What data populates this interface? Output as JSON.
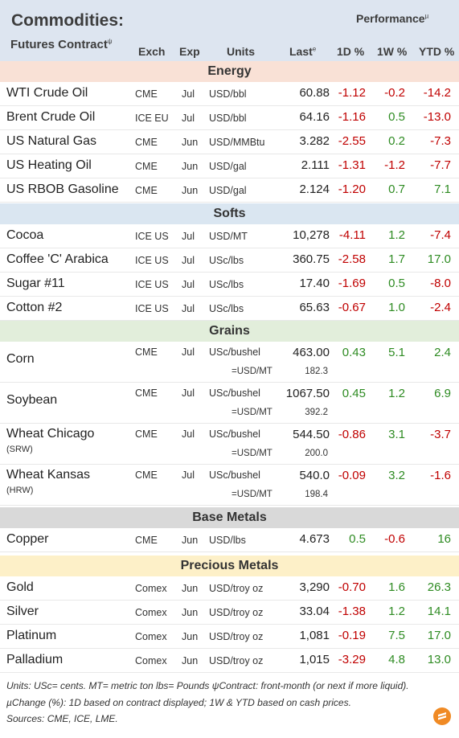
{
  "header": {
    "title": "Commodities:",
    "subtitle": "Futures Contract",
    "subtitle_mark": "ψ",
    "performance": "Performance",
    "performance_mark": "µ",
    "col_exch": "Exch",
    "col_exp": "Exp",
    "col_units": "Units",
    "col_last": "Last",
    "col_last_mark": "e",
    "col_1d": "1D %",
    "col_1w": "1W %",
    "col_ytd": "YTD %"
  },
  "sections": {
    "energy": "Energy",
    "softs": "Softs",
    "grains": "Grains",
    "base": "Base Metals",
    "precious": "Precious Metals"
  },
  "energy": [
    {
      "name": "WTI Crude Oil",
      "exch": "CME",
      "exp": "Jul",
      "units": "USD/bbl",
      "last": "60.88",
      "d1": "-1.12",
      "w1": "-0.2",
      "ytd": "-14.2"
    },
    {
      "name": "Brent Crude Oil",
      "exch": "ICE EU",
      "exp": "Jul",
      "units": "USD/bbl",
      "last": "64.16",
      "d1": "-1.16",
      "w1": "0.5",
      "ytd": "-13.0"
    },
    {
      "name": "US Natural Gas",
      "exch": "CME",
      "exp": "Jun",
      "units": "USD/MMBtu",
      "last": "3.282",
      "d1": "-2.55",
      "w1": "0.2",
      "ytd": "-7.3"
    },
    {
      "name": "US Heating Oil",
      "exch": "CME",
      "exp": "Jun",
      "units": "USD/gal",
      "last": "2.111",
      "d1": "-1.31",
      "w1": "-1.2",
      "ytd": "-7.7"
    },
    {
      "name": "US RBOB Gasoline",
      "exch": "CME",
      "exp": "Jun",
      "units": "USD/gal",
      "last": "2.124",
      "d1": "-1.20",
      "w1": "0.7",
      "ytd": "7.1"
    }
  ],
  "softs": [
    {
      "name": "Cocoa",
      "exch": "ICE US",
      "exp": "Jul",
      "units": "USD/MT",
      "last": "10,278",
      "d1": "-4.11",
      "w1": "1.2",
      "ytd": "-7.4"
    },
    {
      "name": "Coffee 'C' Arabica",
      "exch": "ICE US",
      "exp": "Jul",
      "units": "USc/lbs",
      "last": "360.75",
      "d1": "-2.58",
      "w1": "1.7",
      "ytd": "17.0"
    },
    {
      "name": "Sugar #11",
      "exch": "ICE US",
      "exp": "Jul",
      "units": "USc/lbs",
      "last": "17.40",
      "d1": "-1.69",
      "w1": "0.5",
      "ytd": "-8.0"
    },
    {
      "name": "Cotton #2",
      "exch": "ICE US",
      "exp": "Jul",
      "units": "USc/lbs",
      "last": "65.63",
      "d1": "-0.67",
      "w1": "1.0",
      "ytd": "-2.4"
    }
  ],
  "grains": [
    {
      "name": "Corn",
      "subname": "",
      "exch": "CME",
      "exp": "Jul",
      "units": "USc/bushel",
      "last": "463.00",
      "d1": "0.43",
      "w1": "5.1",
      "ytd": "2.4",
      "alt_units": "=USD/MT",
      "alt_last": "182.3"
    },
    {
      "name": "Soybean",
      "subname": "",
      "exch": "CME",
      "exp": "Jul",
      "units": "USc/bushel",
      "last": "1067.50",
      "d1": "0.45",
      "w1": "1.2",
      "ytd": "6.9",
      "alt_units": "=USD/MT",
      "alt_last": "392.2"
    },
    {
      "name": "Wheat Chicago",
      "subname": "(SRW)",
      "exch": "CME",
      "exp": "Jul",
      "units": "USc/bushel",
      "last": "544.50",
      "d1": "-0.86",
      "w1": "3.1",
      "ytd": "-3.7",
      "alt_units": "=USD/MT",
      "alt_last": "200.0"
    },
    {
      "name": "Wheat Kansas",
      "subname": "(HRW)",
      "exch": "CME",
      "exp": "Jul",
      "units": "USc/bushel",
      "last": "540.0",
      "d1": "-0.09",
      "w1": "3.2",
      "ytd": "-1.6",
      "alt_units": "=USD/MT",
      "alt_last": "198.4"
    }
  ],
  "base": [
    {
      "name": "Copper",
      "exch": "CME",
      "exp": "Jun",
      "units": "USD/lbs",
      "last": "4.673",
      "d1": "0.5",
      "w1": "-0.6",
      "ytd": "16"
    }
  ],
  "precious": [
    {
      "name": "Gold",
      "exch": "Comex",
      "exp": "Jun",
      "units": "USD/troy oz",
      "last": "3,290",
      "d1": "-0.70",
      "w1": "1.6",
      "ytd": "26.3"
    },
    {
      "name": "Silver",
      "exch": "Comex",
      "exp": "Jun",
      "units": "USD/troy oz",
      "last": "33.04",
      "d1": "-1.38",
      "w1": "1.2",
      "ytd": "14.1"
    },
    {
      "name": "Platinum",
      "exch": "Comex",
      "exp": "Jun",
      "units": "USD/troy oz",
      "last": "1,081",
      "d1": "-0.19",
      "w1": "7.5",
      "ytd": "17.0"
    },
    {
      "name": "Palladium",
      "exch": "Comex",
      "exp": "Jun",
      "units": "USD/troy oz",
      "last": "1,015",
      "d1": "-3.29",
      "w1": "4.8",
      "ytd": "13.0"
    }
  ],
  "footer": {
    "line1": "Units: USc= cents.   MT= metric ton    lbs= Pounds   ψContract: front-month (or next if more liquid).",
    "line2": "µChange (%): 1D based on contract displayed; 1W & YTD based on cash prices.",
    "line3": "Sources: CME, ICE, LME."
  },
  "colors": {
    "negative": "#c00000",
    "positive": "#2e8b22",
    "header_bg": "#dde5f0",
    "energy_bg": "#f9e1d6",
    "softs_bg": "#dae6f1",
    "grains_bg": "#e2eedb",
    "base_bg": "#d9d9d9",
    "precious_bg": "#fdf0c8",
    "logo": "#f08a24"
  },
  "logo_icon": "brand-logo-icon"
}
